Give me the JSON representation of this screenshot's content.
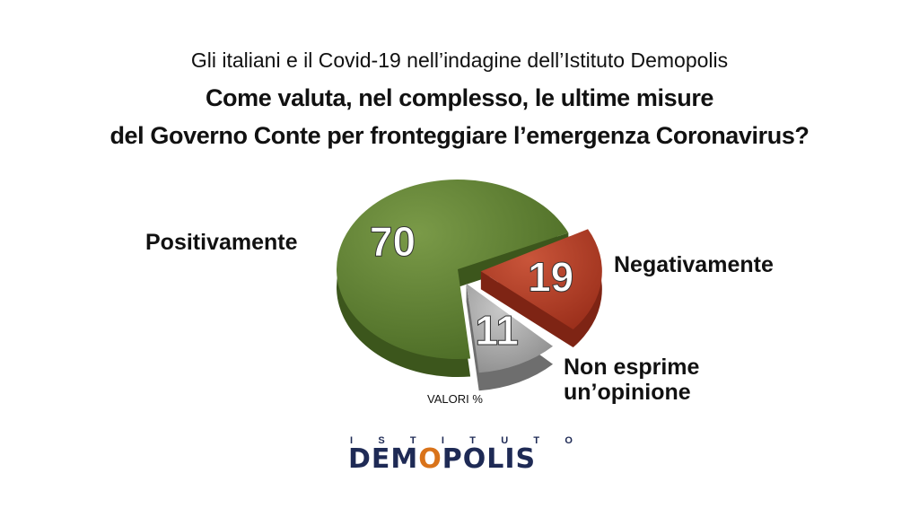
{
  "header": {
    "subtitle": "Gli italiani e il Covid-19 nell’indagine dell’Istituto Demopolis",
    "title_line1": "Come valuta, nel complesso, le ultime misure",
    "title_line2": "del Governo Conte per fronteggiare l’emergenza Coronavirus?"
  },
  "chart_data": {
    "type": "pie",
    "title": "Come valuta, nel complesso, le ultime misure del Governo Conte per fronteggiare l’emergenza Coronavirus?",
    "units": "VALORI %",
    "slices": [
      {
        "name": "Positivamente",
        "value": 70,
        "color": "#5a7a2e"
      },
      {
        "name": "Negativamente",
        "value": 19,
        "color": "#b33a22"
      },
      {
        "name": "Non esprime un’opinione",
        "value": 11,
        "color": "#a8a8a8"
      }
    ]
  },
  "labels": {
    "positive": "Positivamente",
    "negative": "Negativamente",
    "none_line1": "Non esprime",
    "none_line2": "un’opinione"
  },
  "logo": {
    "small": "ISTITUTO",
    "big_part1": "DEM",
    "big_o": "O",
    "big_part2": "POLIS"
  }
}
